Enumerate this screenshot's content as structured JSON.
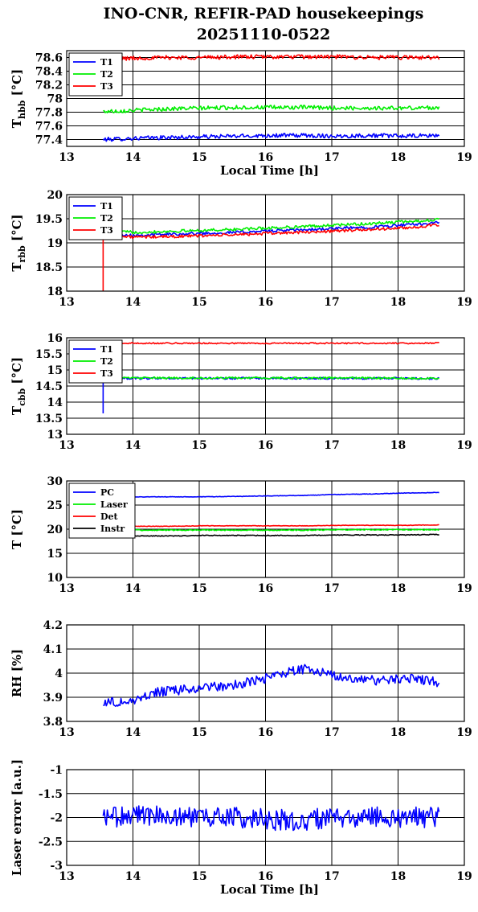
{
  "title_line1": "INO-CNR, REFIR-PAD housekeepings",
  "title_line2": "20251110-0522",
  "chart_data": [
    {
      "type": "line",
      "ylabel_main": "T",
      "ylabel_sub": "hbb",
      "ylabel_unit": " [°C]",
      "xlabel": "Local Time [h]",
      "xlim": [
        13,
        19
      ],
      "ylim": [
        77.3,
        78.7
      ],
      "x_ticks": [
        "13",
        "14",
        "15",
        "16",
        "17",
        "18",
        "19"
      ],
      "y_ticks": [
        77.4,
        77.6,
        77.8,
        78.0,
        78.2,
        78.4,
        78.6
      ],
      "y_tick_labels": [
        "77.4",
        "77.6",
        "77.8",
        "78",
        "78.2",
        "78.4",
        "78.6"
      ],
      "grid": true,
      "legend": "top-left",
      "x_range": [
        13.55,
        18.62
      ],
      "series": [
        {
          "name": "T1",
          "color": "#0000ff",
          "values": [
            77.4,
            77.42,
            77.43,
            77.44,
            77.45,
            77.46,
            77.46,
            77.45,
            77.46,
            77.45,
            77.46
          ],
          "noise": 0.03
        },
        {
          "name": "T2",
          "color": "#00ee00",
          "values": [
            77.81,
            77.83,
            77.85,
            77.86,
            77.87,
            77.87,
            77.87,
            77.86,
            77.86,
            77.86,
            77.87
          ],
          "noise": 0.03
        },
        {
          "name": "T3",
          "color": "#ff0000",
          "values": [
            78.58,
            78.59,
            78.6,
            78.6,
            78.61,
            78.61,
            78.61,
            78.61,
            78.6,
            78.6,
            78.6
          ],
          "noise": 0.03
        }
      ]
    },
    {
      "type": "line",
      "ylabel_main": "T",
      "ylabel_sub": "rbb",
      "ylabel_unit": " [°C]",
      "xlabel": "",
      "xlim": [
        13,
        19
      ],
      "ylim": [
        18,
        20
      ],
      "x_ticks": [
        "13",
        "14",
        "15",
        "16",
        "17",
        "18",
        "19"
      ],
      "y_ticks": [
        18,
        18.5,
        19,
        19.5,
        20
      ],
      "y_tick_labels": [
        "18",
        "18.5",
        "19",
        "19.5",
        "20"
      ],
      "grid": true,
      "legend": "top-left",
      "x_range": [
        13.55,
        18.62
      ],
      "spike": {
        "x": 13.55,
        "from": 18.0,
        "to": 19.2,
        "color": "#ff0000"
      },
      "series": [
        {
          "name": "T1",
          "color": "#0000ff",
          "values": [
            19.18,
            19.16,
            19.18,
            19.2,
            19.22,
            19.25,
            19.27,
            19.3,
            19.33,
            19.37,
            19.42
          ],
          "noise": 0.03
        },
        {
          "name": "T2",
          "color": "#00ee00",
          "values": [
            19.24,
            19.22,
            19.24,
            19.26,
            19.28,
            19.31,
            19.34,
            19.37,
            19.4,
            19.44,
            19.48
          ],
          "noise": 0.03
        },
        {
          "name": "T3",
          "color": "#ff0000",
          "values": [
            19.14,
            19.12,
            19.13,
            19.15,
            19.17,
            19.2,
            19.22,
            19.25,
            19.28,
            19.31,
            19.37
          ],
          "noise": 0.03
        }
      ]
    },
    {
      "type": "line",
      "ylabel_main": "T",
      "ylabel_sub": "cbb",
      "ylabel_unit": " [°C]",
      "xlabel": "",
      "xlim": [
        13,
        19
      ],
      "ylim": [
        13,
        16
      ],
      "x_ticks": [
        "13",
        "14",
        "15",
        "16",
        "17",
        "18",
        "19"
      ],
      "y_ticks": [
        13,
        13.5,
        14,
        14.5,
        15,
        15.5,
        16
      ],
      "y_tick_labels": [
        "13",
        "13.5",
        "14",
        "14.5",
        "15",
        "15.5",
        "16"
      ],
      "grid": true,
      "legend": "top-left",
      "x_range": [
        13.55,
        18.62
      ],
      "spike": {
        "x": 13.55,
        "from": 13.65,
        "to": 14.7,
        "color": "#0000ff"
      },
      "series": [
        {
          "name": "T1",
          "color": "#0000ff",
          "values": [
            14.74,
            14.74,
            14.74,
            14.74,
            14.74,
            14.74,
            14.74,
            14.74,
            14.74,
            14.74,
            14.73
          ],
          "noise": 0.03
        },
        {
          "name": "T2",
          "color": "#00ee00",
          "values": [
            14.75,
            14.75,
            14.75,
            14.75,
            14.75,
            14.75,
            14.75,
            14.75,
            14.75,
            14.74,
            14.74
          ],
          "noise": 0.03
        },
        {
          "name": "T3",
          "color": "#ff0000",
          "values": [
            15.82,
            15.83,
            15.83,
            15.83,
            15.83,
            15.83,
            15.83,
            15.83,
            15.83,
            15.83,
            15.84
          ],
          "noise": 0.02
        }
      ]
    },
    {
      "type": "line",
      "ylabel_main": "T [°C]",
      "ylabel_sub": "",
      "ylabel_unit": "",
      "xlabel": "",
      "xlim": [
        13,
        19
      ],
      "ylim": [
        10,
        30
      ],
      "x_ticks": [
        "13",
        "14",
        "15",
        "16",
        "17",
        "18",
        "19"
      ],
      "y_ticks": [
        10,
        15,
        20,
        25,
        30
      ],
      "y_tick_labels": [
        "10",
        "15",
        "20",
        "25",
        "30"
      ],
      "grid": true,
      "legend": "top-left",
      "x_range": [
        13.55,
        18.62
      ],
      "series": [
        {
          "name": "PC",
          "color": "#0000ff",
          "values": [
            26.6,
            26.7,
            26.7,
            26.7,
            26.8,
            26.9,
            27.0,
            27.2,
            27.3,
            27.5,
            27.6
          ],
          "noise": 0.05
        },
        {
          "name": "Laser",
          "color": "#00ee00",
          "values": [
            19.8,
            19.8,
            19.8,
            19.8,
            19.8,
            19.8,
            19.8,
            19.9,
            19.9,
            19.9,
            19.9
          ],
          "noise": 0.1
        },
        {
          "name": "Det",
          "color": "#ff0000",
          "values": [
            20.6,
            20.6,
            20.6,
            20.7,
            20.7,
            20.7,
            20.7,
            20.8,
            20.8,
            20.8,
            20.9
          ],
          "noise": 0.05
        },
        {
          "name": "Instr",
          "color": "#000000",
          "values": [
            18.5,
            18.6,
            18.6,
            18.7,
            18.7,
            18.7,
            18.7,
            18.8,
            18.8,
            18.8,
            18.9
          ],
          "noise": 0.08
        }
      ]
    },
    {
      "type": "line",
      "ylabel_main": "RH [%]",
      "ylabel_sub": "",
      "ylabel_unit": "",
      "xlabel": "",
      "xlim": [
        13,
        19
      ],
      "ylim": [
        3.8,
        4.2
      ],
      "x_ticks": [
        "13",
        "14",
        "15",
        "16",
        "17",
        "18",
        "19"
      ],
      "y_ticks": [
        3.8,
        3.9,
        4.0,
        4.1,
        4.2
      ],
      "y_tick_labels": [
        "3.8",
        "3.9",
        "4",
        "4.1",
        "4.2"
      ],
      "grid": true,
      "legend": "none",
      "x_range": [
        13.55,
        18.62
      ],
      "series": [
        {
          "color": "#0000ff",
          "values": [
            3.88,
            3.88,
            3.92,
            3.93,
            3.94,
            3.95,
            3.97,
            4.0,
            4.02,
            3.99,
            3.97,
            3.97,
            3.98,
            3.96
          ],
          "noise": 0.02
        }
      ]
    },
    {
      "type": "line",
      "ylabel_main": "Laser error [a.u.]",
      "ylabel_sub": "",
      "ylabel_unit": "",
      "xlabel": "Local Time [h]",
      "xlim": [
        13,
        19
      ],
      "ylim": [
        -3,
        -1
      ],
      "x_ticks": [
        "13",
        "14",
        "15",
        "16",
        "17",
        "18",
        "19"
      ],
      "y_ticks": [
        -3,
        -2.5,
        -2,
        -1.5,
        -1
      ],
      "y_tick_labels": [
        "-3",
        "-2.5",
        "-2",
        "-1.5",
        "-1"
      ],
      "grid": true,
      "legend": "none",
      "x_range": [
        13.55,
        18.62
      ],
      "series": [
        {
          "color": "#0000ff",
          "values": [
            -2.0,
            -1.95,
            -1.95,
            -2.0,
            -2.0,
            -2.05,
            -2.05,
            -2.0,
            -2.0,
            -2.0,
            -2.0
          ],
          "noise": 0.22
        }
      ]
    }
  ]
}
